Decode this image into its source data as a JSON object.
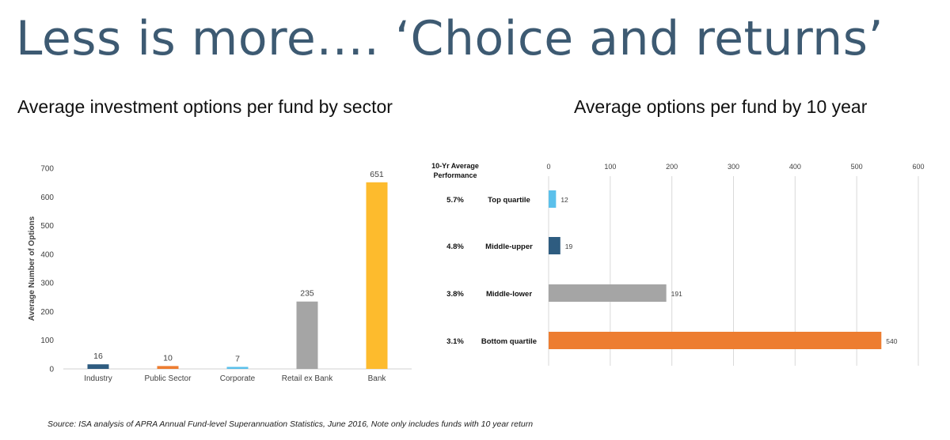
{
  "slide": {
    "title": "Less is more…. ‘Choice and returns’",
    "source": "Source: ISA analysis of APRA Annual Fund-level Superannuation Statistics, June 2016, Note only includes funds with 10 year return"
  },
  "chart_data": [
    {
      "type": "bar",
      "title": "Average investment options per fund by sector",
      "xlabel": "",
      "ylabel": "Average Number of Options",
      "ylim": [
        0,
        700
      ],
      "yticks": [
        0,
        100,
        200,
        300,
        400,
        500,
        600,
        700
      ],
      "categories": [
        "Industry",
        "Public Sector",
        "Corporate",
        "Retail ex Bank",
        "Bank"
      ],
      "values": [
        16,
        10,
        7,
        235,
        651
      ],
      "colors": [
        "#2e5c80",
        "#ed7d31",
        "#5bc0eb",
        "#a5a5a5",
        "#fdbb2d"
      ],
      "grid": false
    },
    {
      "type": "bar",
      "orientation": "horizontal",
      "title": "Average options per fund by 10 year",
      "row_header": "10-Yr Average Performance",
      "xlim": [
        0,
        600
      ],
      "xticks": [
        0,
        100,
        200,
        300,
        400,
        500,
        600
      ],
      "categories": [
        "Top quartile",
        "Middle-upper",
        "Middle-lower",
        "Bottom quartile"
      ],
      "performance": [
        "5.7%",
        "4.8%",
        "3.8%",
        "3.1%"
      ],
      "values": [
        12,
        19,
        191,
        540
      ],
      "colors": [
        "#5bc0eb",
        "#2e5c80",
        "#a5a5a5",
        "#ed7d31"
      ],
      "grid": true
    }
  ]
}
